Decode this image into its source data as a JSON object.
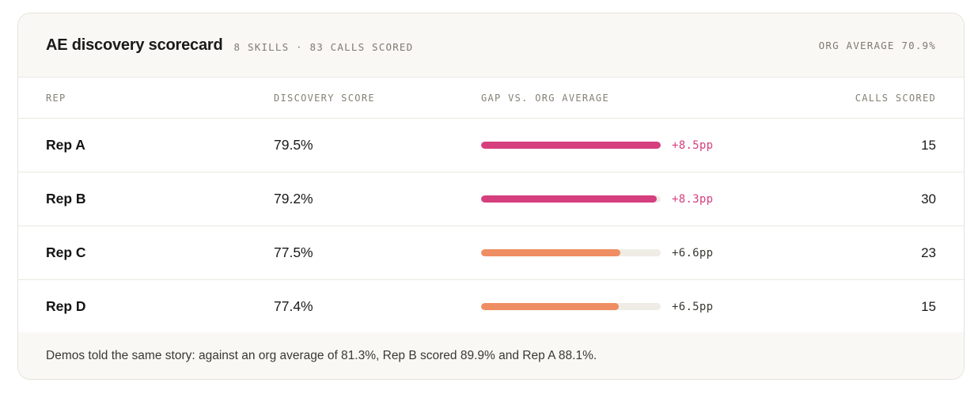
{
  "header": {
    "title": "AE discovery scorecard",
    "subtitle": "8 SKILLS · 83 CALLS SCORED",
    "org_average": "ORG AVERAGE 70.9%"
  },
  "columns": {
    "rep": "REP",
    "score": "DISCOVERY SCORE",
    "gap": "GAP VS. ORG AVERAGE",
    "calls": "CALLS SCORED"
  },
  "colors": {
    "accent_high": "#d63f7e",
    "accent_mid": "#ef8e62",
    "track": "#efece6"
  },
  "rows": [
    {
      "rep": "Rep A",
      "score": "79.5%",
      "gap": "+8.5pp",
      "gap_fraction": 1.0,
      "tier": "high",
      "calls": "15"
    },
    {
      "rep": "Rep B",
      "score": "79.2%",
      "gap": "+8.3pp",
      "gap_fraction": 0.976,
      "tier": "high",
      "calls": "30"
    },
    {
      "rep": "Rep C",
      "score": "77.5%",
      "gap": "+6.6pp",
      "gap_fraction": 0.776,
      "tier": "mid",
      "calls": "23"
    },
    {
      "rep": "Rep D",
      "score": "77.4%",
      "gap": "+6.5pp",
      "gap_fraction": 0.765,
      "tier": "mid",
      "calls": "15"
    }
  ],
  "footer": {
    "note": "Demos told the same story: against an org average of 81.3%, Rep B scored 89.9% and Rep A 88.1%."
  }
}
